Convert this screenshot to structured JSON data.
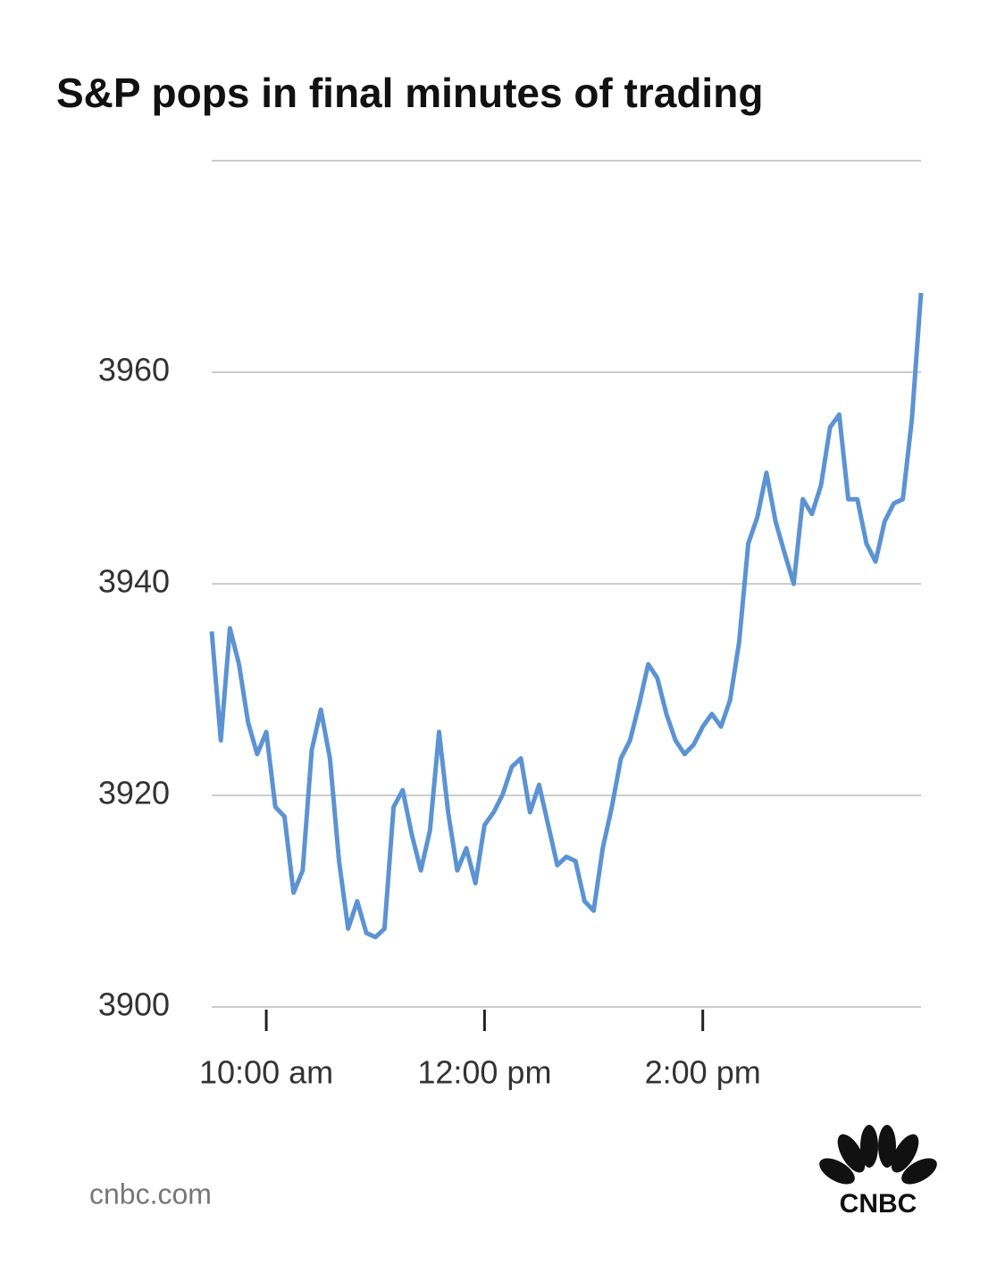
{
  "chart_data": {
    "type": "line",
    "title": "S&P pops in final minutes of trading",
    "x": [
      570,
      575,
      580,
      585,
      590,
      595,
      600,
      605,
      610,
      615,
      620,
      625,
      630,
      635,
      640,
      645,
      650,
      655,
      660,
      665,
      670,
      675,
      680,
      685,
      690,
      695,
      700,
      705,
      710,
      715,
      720,
      725,
      730,
      735,
      740,
      745,
      750,
      755,
      760,
      765,
      770,
      775,
      780,
      785,
      790,
      795,
      800,
      805,
      810,
      815,
      820,
      825,
      830,
      835,
      840,
      845,
      850,
      855,
      860,
      865,
      870,
      875,
      880,
      885,
      890,
      895,
      900,
      905,
      910,
      915,
      920,
      925,
      930,
      935,
      940,
      945,
      950,
      955,
      960
    ],
    "values": [
      3935.5,
      3925.2,
      3935.8,
      3932.4,
      3926.9,
      3923.9,
      3926,
      3918.9,
      3918,
      3910.8,
      3912.9,
      3924.3,
      3928.1,
      3923.5,
      3913.8,
      3907.4,
      3910,
      3907,
      3906.6,
      3907.4,
      3918.9,
      3920.5,
      3916.3,
      3912.9,
      3916.7,
      3926,
      3918.4,
      3912.9,
      3915,
      3911.7,
      3917.2,
      3918.4,
      3920.1,
      3922.7,
      3923.5,
      3918.4,
      3921,
      3917.2,
      3913.4,
      3914.2,
      3913.8,
      3910,
      3909.1,
      3915,
      3918.9,
      3923.5,
      3925.2,
      3928.6,
      3932.4,
      3931.1,
      3927.7,
      3925.2,
      3923.9,
      3924.8,
      3926.5,
      3927.7,
      3926.5,
      3929,
      3934.5,
      3943.8,
      3946.3,
      3950.5,
      3945.9,
      3942.9,
      3940,
      3948,
      3946.6,
      3949.3,
      3954.8,
      3956,
      3948,
      3948,
      3943.8,
      3942.1,
      3945.9,
      3947.6,
      3948,
      3955.6,
      3967.5
    ],
    "color": "#5b93d3",
    "xlim": [
      570,
      960
    ],
    "xticks": [
      {
        "value": 600,
        "label": "10:00 am"
      },
      {
        "value": 720,
        "label": "12:00 pm"
      },
      {
        "value": 840,
        "label": "2:00 pm"
      }
    ],
    "ylim": [
      3900,
      3980
    ],
    "yticks": [
      3900,
      3920,
      3940,
      3960
    ],
    "grid": true,
    "source": "cnbc.com",
    "logo": "CNBC"
  }
}
